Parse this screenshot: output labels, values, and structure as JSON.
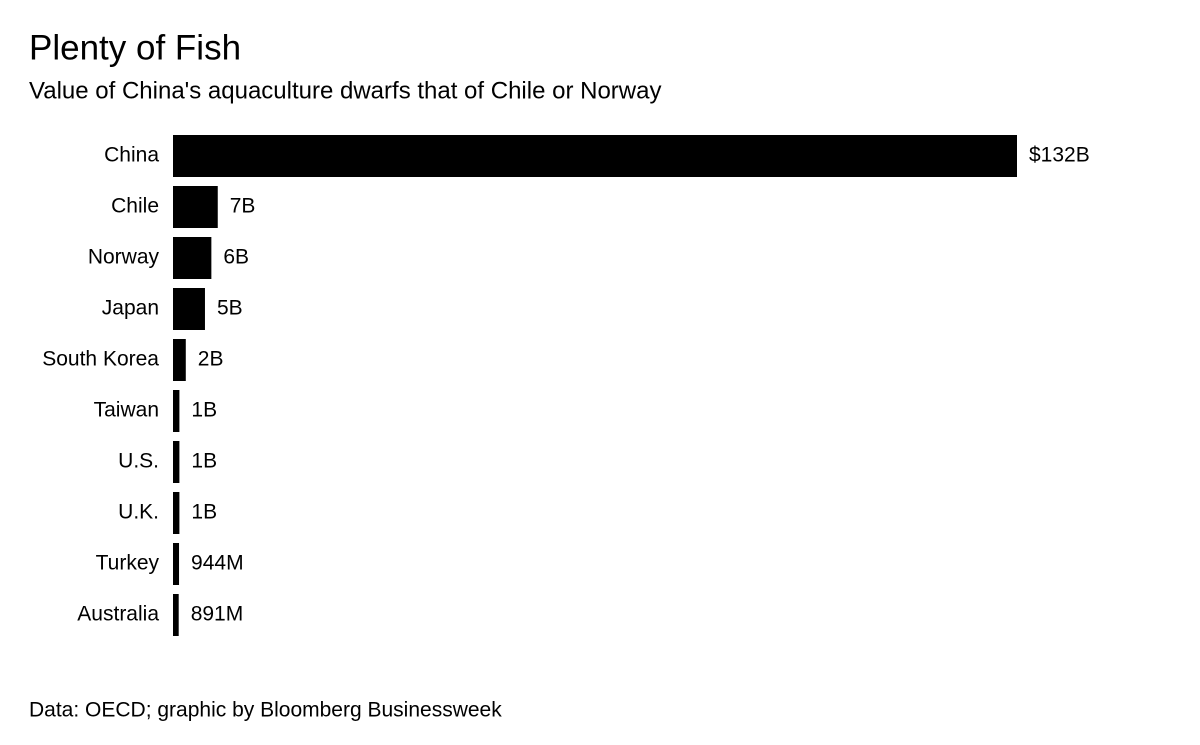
{
  "chart_data": {
    "type": "bar",
    "orientation": "horizontal",
    "title": "Plenty of Fish",
    "subtitle": "Value of China's aquaculture dwarfs that of Chile or Norway",
    "source": "Data: OECD; graphic by Bloomberg Businessweek",
    "categories": [
      "China",
      "Chile",
      "Norway",
      "Japan",
      "South Korea",
      "Taiwan",
      "U.S.",
      "U.K.",
      "Turkey",
      "Australia"
    ],
    "values": [
      132,
      7,
      6,
      5,
      2,
      1,
      1,
      1,
      0.944,
      0.891
    ],
    "value_labels": [
      "$132B",
      "7B",
      "6B",
      "5B",
      "2B",
      "1B",
      "1B",
      "1B",
      "944M",
      "891M"
    ],
    "color": "#000000"
  }
}
